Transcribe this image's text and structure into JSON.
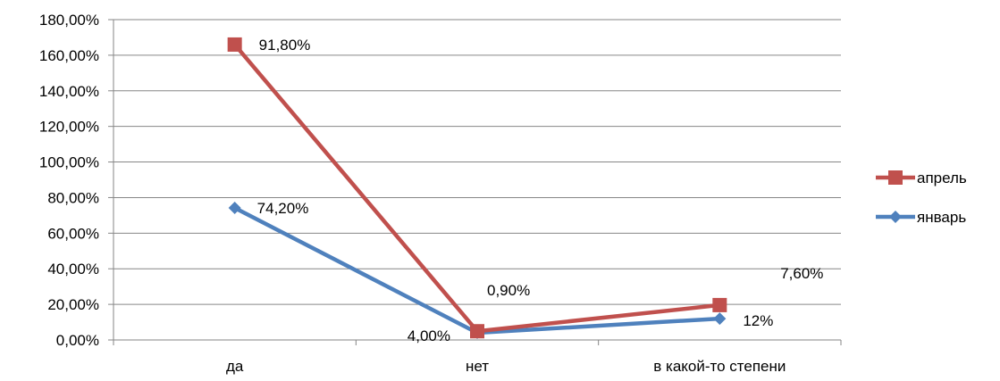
{
  "chart_data": {
    "type": "line",
    "categories": [
      "да",
      "нет",
      "в какой-то степени"
    ],
    "ylim": [
      0,
      180
    ],
    "yticks": [
      0,
      20,
      40,
      60,
      80,
      100,
      120,
      140,
      160,
      180
    ],
    "ytick_labels": [
      "0,00%",
      "20,00%",
      "40,00%",
      "60,00%",
      "80,00%",
      "100,00%",
      "120,00%",
      "140,00%",
      "160,00%",
      "180,00%"
    ],
    "grid": true,
    "legend_position": "right",
    "series": [
      {
        "name": "январь",
        "values": [
          74.2,
          4.0,
          12.0
        ],
        "data_labels": [
          "74,20%",
          "4,00%",
          "12%"
        ],
        "color": "#4F81BD",
        "marker": "diamond"
      },
      {
        "name": "апрель",
        "values": [
          166.0,
          4.9,
          19.6
        ],
        "data_labels": [
          "91,80%",
          "0,90%",
          "7,60%"
        ],
        "color": "#C0504D",
        "marker": "square"
      }
    ]
  }
}
